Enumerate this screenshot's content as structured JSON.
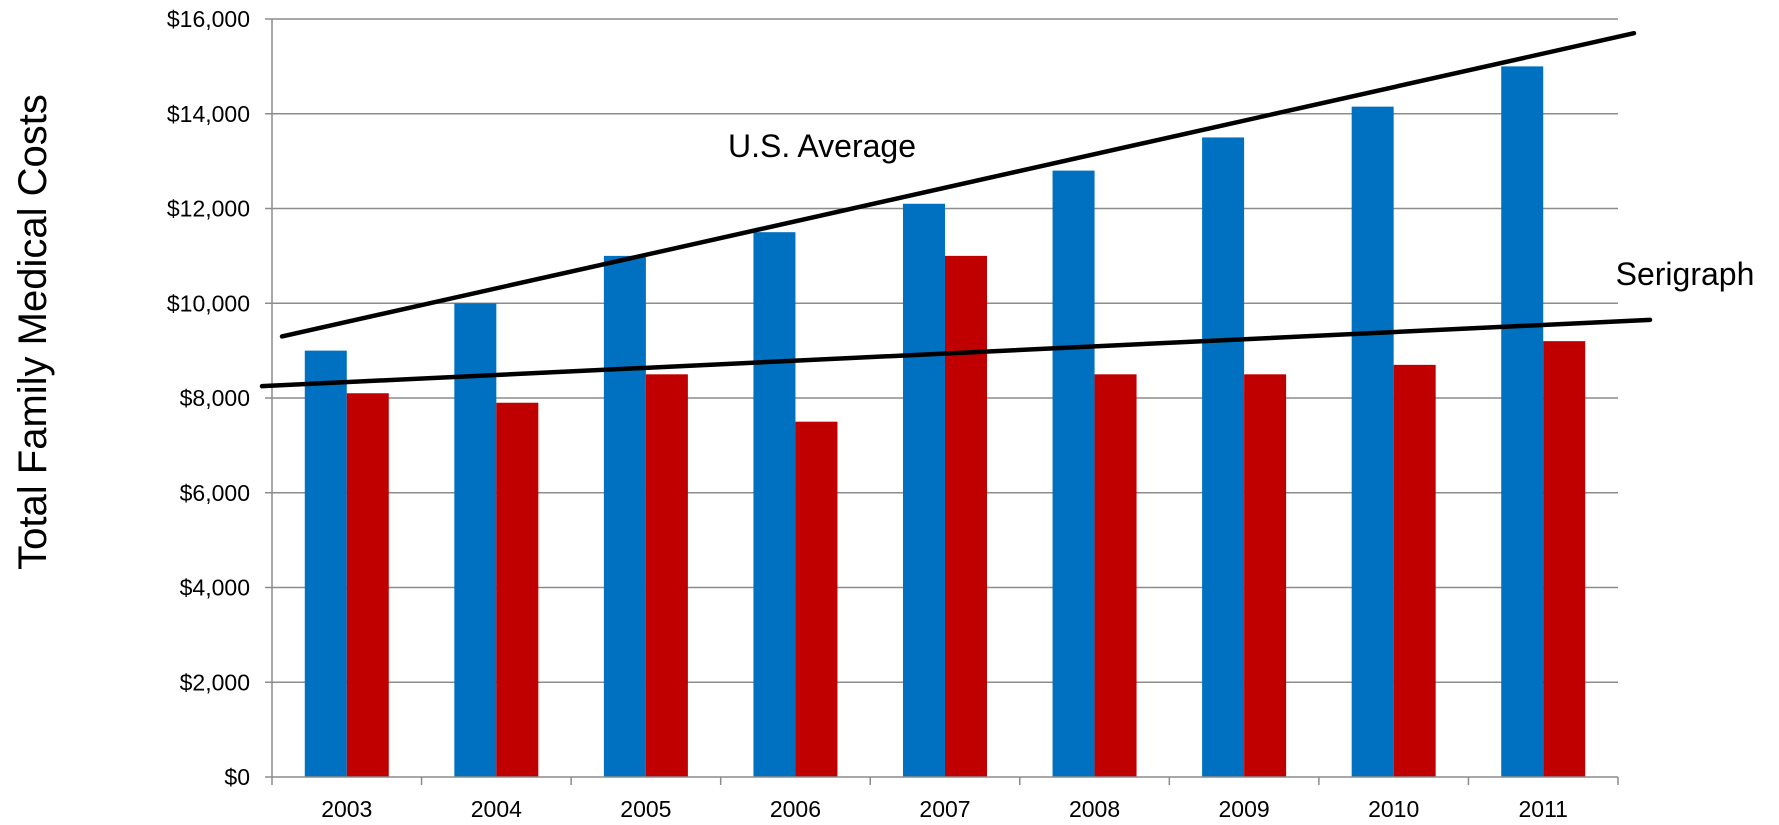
{
  "chart_data": {
    "type": "bar",
    "title": "",
    "xlabel": "",
    "ylabel": "Total Family Medical Costs",
    "categories": [
      "2003",
      "2004",
      "2005",
      "2006",
      "2007",
      "2008",
      "2009",
      "2010",
      "2011"
    ],
    "series": [
      {
        "color": "#0070C0",
        "values": [
          9000,
          10000,
          11000,
          11500,
          12100,
          12800,
          13500,
          14150,
          15000
        ]
      },
      {
        "color": "#C00000",
        "values": [
          8100,
          7900,
          8500,
          7500,
          11000,
          8500,
          8500,
          8700,
          9200
        ]
      }
    ],
    "ylim": [
      0,
      16000
    ],
    "yticks": [
      0,
      2000,
      4000,
      6000,
      8000,
      10000,
      12000,
      14000,
      16000
    ],
    "ytick_labels": [
      "$0",
      "$2,000",
      "$4,000",
      "$6,000",
      "$8,000",
      "$10,000",
      "$12,000",
      "$14,000",
      "$16,000"
    ],
    "grid": true,
    "legend": "none",
    "trend_lines": [
      {
        "label": "U.S. Average",
        "start_value": 9300,
        "end_value": 15700,
        "color": "#000000"
      },
      {
        "label": "Serigraph",
        "start_value": 8250,
        "end_value": 9650,
        "color": "#000000"
      }
    ],
    "colors": {
      "grid": "#8c8c8c",
      "axis": "#8c8c8c",
      "trend": "#000000"
    }
  }
}
